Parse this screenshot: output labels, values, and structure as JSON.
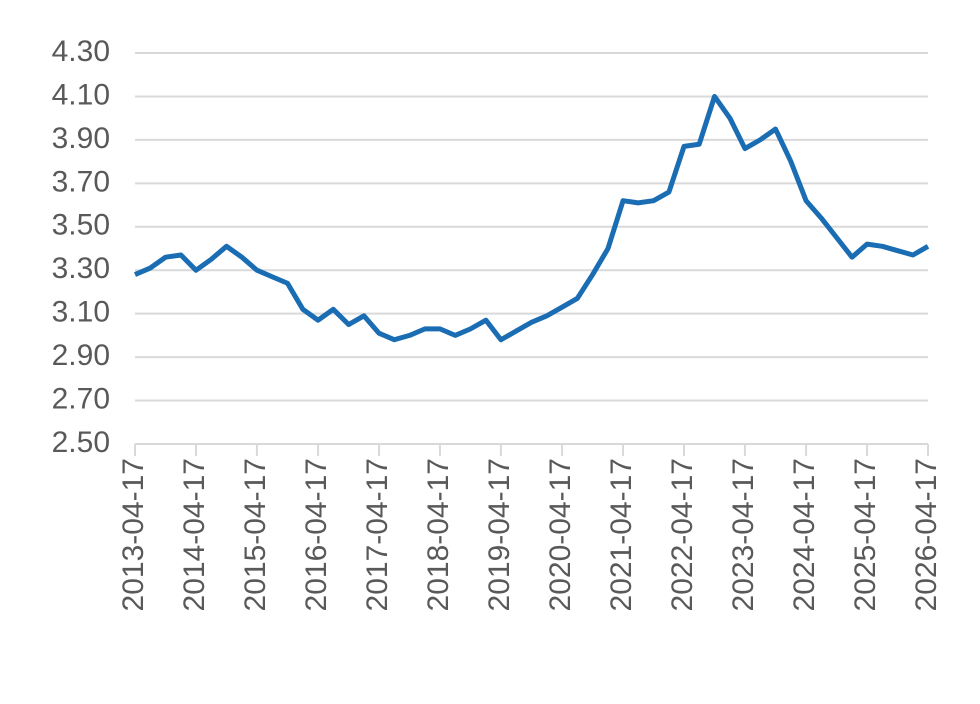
{
  "chart_data": {
    "type": "line",
    "x": [
      "2013-04-17",
      "2013-07-17",
      "2013-10-17",
      "2014-01-17",
      "2014-04-17",
      "2014-07-17",
      "2014-10-17",
      "2015-01-17",
      "2015-04-17",
      "2015-07-17",
      "2015-10-17",
      "2016-01-17",
      "2016-04-17",
      "2016-07-17",
      "2016-10-17",
      "2017-01-17",
      "2017-04-17",
      "2017-07-17",
      "2017-10-17",
      "2018-01-17",
      "2018-04-17",
      "2018-07-17",
      "2018-10-17",
      "2019-01-17",
      "2019-04-17",
      "2019-07-17",
      "2019-10-17",
      "2020-01-17",
      "2020-04-17",
      "2020-07-17",
      "2020-10-17",
      "2021-01-17",
      "2021-04-17",
      "2021-07-17",
      "2021-10-17",
      "2022-01-17",
      "2022-04-17",
      "2022-07-17",
      "2022-10-17",
      "2023-01-17",
      "2023-04-17",
      "2023-07-17",
      "2023-10-17",
      "2024-01-17",
      "2024-04-17",
      "2024-07-17",
      "2024-10-17",
      "2025-01-17",
      "2025-04-17",
      "2025-07-17",
      "2025-10-17",
      "2026-01-17",
      "2026-04-17"
    ],
    "series": [
      {
        "color": "#1a6db3",
        "values": [
          3.28,
          3.31,
          3.36,
          3.37,
          3.3,
          3.35,
          3.41,
          3.36,
          3.3,
          3.27,
          3.24,
          3.12,
          3.07,
          3.12,
          3.05,
          3.09,
          3.01,
          2.98,
          3.0,
          3.03,
          3.03,
          3.0,
          3.03,
          3.07,
          2.98,
          3.02,
          3.06,
          3.09,
          3.13,
          3.17,
          3.28,
          3.4,
          3.62,
          3.61,
          3.62,
          3.66,
          3.87,
          3.88,
          4.1,
          4.0,
          3.86,
          3.9,
          3.95,
          3.8,
          3.62,
          3.54,
          3.45,
          3.36,
          3.42,
          3.41,
          3.39,
          3.37,
          3.41
        ]
      }
    ],
    "xlim": [
      "2013-04-17",
      "2026-04-17"
    ],
    "xticks": [
      "2013-04-17",
      "2014-04-17",
      "2015-04-17",
      "2016-04-17",
      "2017-04-17",
      "2018-04-17",
      "2019-04-17",
      "2020-04-17",
      "2021-04-17",
      "2022-04-17",
      "2023-04-17",
      "2024-04-17",
      "2025-04-17",
      "2026-04-17"
    ],
    "ylim": [
      2.5,
      4.3
    ],
    "yticks": [
      {
        "value": 2.5,
        "label": "2.50"
      },
      {
        "value": 2.7,
        "label": "2.70"
      },
      {
        "value": 2.9,
        "label": "2.90"
      },
      {
        "value": 3.1,
        "label": "3.10"
      },
      {
        "value": 3.3,
        "label": "3.30"
      },
      {
        "value": 3.5,
        "label": "3.50"
      },
      {
        "value": 3.7,
        "label": "3.70"
      },
      {
        "value": 3.9,
        "label": "3.90"
      },
      {
        "value": 4.1,
        "label": "4.10"
      },
      {
        "value": 4.3,
        "label": "4.30"
      }
    ],
    "grid": true
  }
}
